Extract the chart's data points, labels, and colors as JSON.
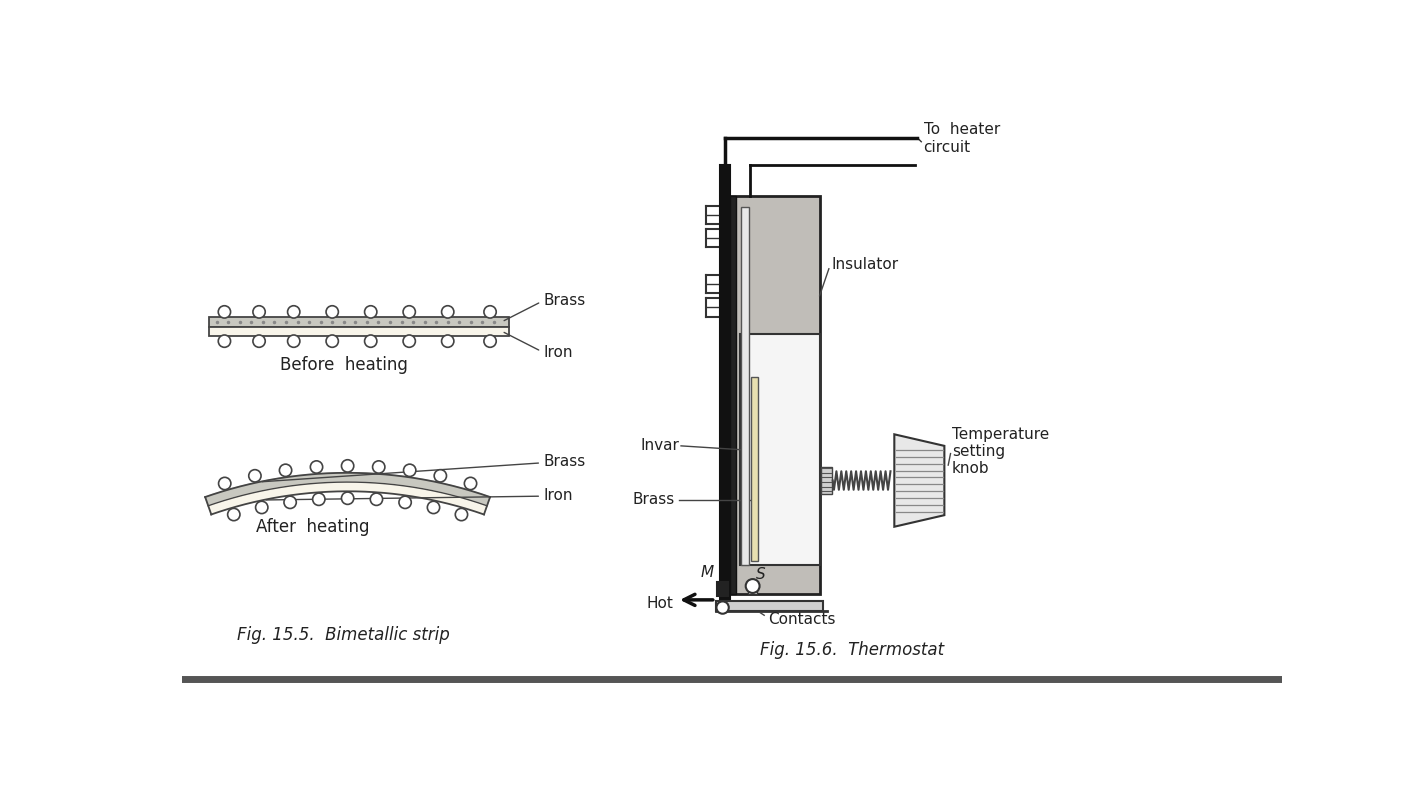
{
  "bg_color": "#ffffff",
  "title_left": "Fig. 15.5.  Bimetallic strip",
  "title_right": "Fig. 15.6.  Thermostat",
  "label_before": "Before  heating",
  "label_after": "After  heating",
  "label_brass1": "Brass",
  "label_iron1": "Iron",
  "label_brass2": "Brass",
  "label_iron2": "Iron",
  "label_invar": "Invar",
  "label_brass_t": "Brass",
  "label_insulator": "Insulator",
  "label_to_heater": "To  heater\ncircuit",
  "label_temp": "Temperature\nsetting\nknob",
  "label_m": "M",
  "label_s": "S",
  "label_hot": "Hot",
  "label_contacts": "Contacts",
  "strip_color_brass": "#c8c8c8",
  "strip_color_iron": "#f5f0e8",
  "strip_outline": "#444444",
  "rivet_color": "#ffffff",
  "thermostat_dark": "#1a1a1a",
  "thermostat_gray": "#c0bdb8",
  "thermostat_light": "#f0f0f0",
  "thermostat_hatch": "#888888",
  "bottom_bar_color": "#333333"
}
